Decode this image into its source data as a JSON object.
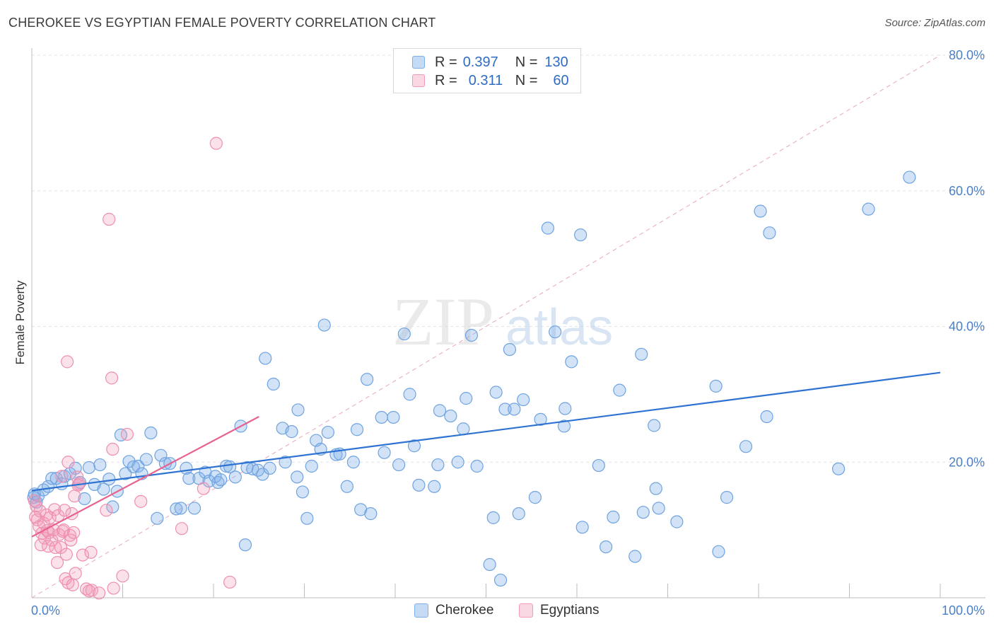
{
  "header": {
    "title": "CHEROKEE VS EGYPTIAN FEMALE POVERTY CORRELATION CHART",
    "source": "Source: ZipAtlas.com"
  },
  "watermark": {
    "zip": "ZIP",
    "atlas": "atlas"
  },
  "legend_top": {
    "rows": [
      {
        "r_label": "R =",
        "r_value": "0.397",
        "n_label": "N =",
        "n_value": "130",
        "color": "#7fb0e8"
      },
      {
        "r_label": "R =",
        "r_value": "0.311",
        "n_label": "N =",
        "n_value": "60",
        "color": "#f19ab8"
      }
    ]
  },
  "legend_bottom": [
    {
      "label": "Cherokee",
      "color": "#7fb0e8"
    },
    {
      "label": "Egyptians",
      "color": "#f19ab8"
    }
  ],
  "colors": {
    "cherokee_fill": "rgba(127,176,232,0.35)",
    "cherokee_stroke": "#6fa3e0",
    "egyptian_fill": "rgba(241,154,184,0.30)",
    "egyptian_stroke": "#ee8fb0",
    "cherokee_line": "#2e72d2",
    "egyptian_line": "#e8628f",
    "diagonal": "#e9a6bc",
    "grid": "#e3e3e3",
    "tick_text": "#4a7fc8"
  },
  "chart_data": {
    "type": "scatter",
    "title": "CHEROKEE VS EGYPTIAN FEMALE POVERTY CORRELATION CHART",
    "xlabel": "",
    "ylabel": "Female Poverty",
    "xlim": [
      0,
      100
    ],
    "ylim": [
      0,
      80
    ],
    "x_tick_labels": [
      "0.0%",
      "100.0%"
    ],
    "y_ticks": [
      20,
      40,
      60,
      80
    ],
    "y_tick_labels": [
      "20.0%",
      "40.0%",
      "60.0%",
      "80.0%"
    ],
    "grid": true,
    "legend_position": "top-center",
    "series": [
      {
        "name": "Cherokee",
        "r": 0.397,
        "n": 130,
        "trend": {
          "x": [
            0,
            100
          ],
          "y": [
            15.8,
            33.2
          ]
        },
        "points": [
          [
            0.2,
            14.8
          ],
          [
            0.3,
            15.3
          ],
          [
            0.5,
            14.1
          ],
          [
            0.7,
            15.0
          ],
          [
            1.3,
            15.9
          ],
          [
            1.8,
            16.4
          ],
          [
            2.2,
            17.6
          ],
          [
            2.7,
            17.6
          ],
          [
            3.3,
            16.8
          ],
          [
            3.6,
            17.9
          ],
          [
            4.2,
            18.3
          ],
          [
            4.8,
            19.1
          ],
          [
            5.3,
            17.0
          ],
          [
            5.8,
            14.6
          ],
          [
            6.3,
            19.2
          ],
          [
            6.9,
            16.7
          ],
          [
            7.5,
            19.6
          ],
          [
            7.9,
            16.0
          ],
          [
            8.5,
            17.5
          ],
          [
            8.9,
            13.4
          ],
          [
            9.4,
            15.7
          ],
          [
            9.8,
            24.0
          ],
          [
            10.3,
            18.3
          ],
          [
            10.7,
            20.1
          ],
          [
            11.2,
            19.3
          ],
          [
            11.7,
            19.4
          ],
          [
            12.1,
            18.3
          ],
          [
            12.6,
            20.4
          ],
          [
            13.1,
            24.3
          ],
          [
            13.8,
            11.7
          ],
          [
            14.2,
            21.0
          ],
          [
            14.7,
            19.8
          ],
          [
            15.2,
            19.8
          ],
          [
            15.9,
            13.1
          ],
          [
            16.4,
            13.2
          ],
          [
            17.0,
            19.1
          ],
          [
            17.3,
            17.6
          ],
          [
            17.9,
            13.2
          ],
          [
            18.4,
            17.6
          ],
          [
            19.1,
            18.5
          ],
          [
            19.5,
            17.2
          ],
          [
            20.2,
            17.9
          ],
          [
            20.5,
            17.0
          ],
          [
            20.8,
            17.4
          ],
          [
            21.4,
            19.4
          ],
          [
            21.8,
            19.3
          ],
          [
            22.4,
            17.8
          ],
          [
            23.0,
            25.3
          ],
          [
            23.5,
            7.8
          ],
          [
            23.7,
            19.2
          ],
          [
            24.3,
            19.0
          ],
          [
            24.9,
            18.8
          ],
          [
            25.4,
            18.2
          ],
          [
            25.7,
            35.3
          ],
          [
            26.2,
            19.1
          ],
          [
            26.6,
            31.5
          ],
          [
            27.6,
            25.0
          ],
          [
            27.9,
            20.0
          ],
          [
            28.6,
            24.5
          ],
          [
            29.2,
            17.8
          ],
          [
            29.3,
            27.7
          ],
          [
            29.8,
            15.6
          ],
          [
            30.3,
            11.7
          ],
          [
            30.8,
            19.4
          ],
          [
            31.3,
            23.2
          ],
          [
            31.8,
            21.9
          ],
          [
            32.2,
            40.2
          ],
          [
            32.6,
            24.4
          ],
          [
            33.5,
            21.1
          ],
          [
            33.9,
            21.2
          ],
          [
            34.7,
            16.4
          ],
          [
            35.4,
            20.0
          ],
          [
            35.8,
            24.8
          ],
          [
            36.2,
            13.0
          ],
          [
            36.9,
            32.2
          ],
          [
            37.3,
            12.4
          ],
          [
            38.5,
            26.6
          ],
          [
            38.8,
            21.4
          ],
          [
            39.8,
            26.6
          ],
          [
            40.4,
            19.6
          ],
          [
            41.0,
            38.9
          ],
          [
            41.6,
            30.0
          ],
          [
            42.1,
            22.4
          ],
          [
            42.6,
            16.6
          ],
          [
            44.3,
            16.4
          ],
          [
            44.7,
            19.6
          ],
          [
            44.9,
            27.6
          ],
          [
            46.1,
            26.8
          ],
          [
            46.9,
            20.0
          ],
          [
            47.5,
            24.9
          ],
          [
            47.8,
            29.4
          ],
          [
            48.4,
            38.7
          ],
          [
            49.0,
            19.4
          ],
          [
            50.4,
            4.9
          ],
          [
            50.8,
            11.8
          ],
          [
            51.1,
            30.3
          ],
          [
            51.6,
            2.6
          ],
          [
            52.1,
            27.8
          ],
          [
            52.6,
            36.6
          ],
          [
            53.1,
            27.8
          ],
          [
            53.6,
            12.4
          ],
          [
            54.1,
            29.2
          ],
          [
            55.4,
            14.8
          ],
          [
            56.0,
            26.3
          ],
          [
            56.8,
            54.5
          ],
          [
            57.6,
            39.2
          ],
          [
            58.6,
            25.3
          ],
          [
            58.7,
            27.9
          ],
          [
            59.4,
            34.8
          ],
          [
            60.4,
            53.5
          ],
          [
            60.6,
            10.4
          ],
          [
            62.4,
            19.5
          ],
          [
            63.2,
            7.5
          ],
          [
            64.0,
            11.9
          ],
          [
            64.7,
            30.6
          ],
          [
            66.4,
            6.1
          ],
          [
            67.1,
            35.9
          ],
          [
            67.3,
            12.6
          ],
          [
            68.5,
            25.4
          ],
          [
            68.7,
            16.1
          ],
          [
            69.0,
            13.2
          ],
          [
            71.0,
            11.2
          ],
          [
            75.3,
            31.2
          ],
          [
            75.6,
            6.8
          ],
          [
            76.5,
            14.8
          ],
          [
            78.6,
            22.3
          ],
          [
            80.2,
            57.0
          ],
          [
            80.9,
            26.7
          ],
          [
            81.2,
            53.8
          ],
          [
            88.8,
            19.0
          ],
          [
            92.1,
            57.3
          ],
          [
            96.6,
            62.0
          ]
        ]
      },
      {
        "name": "Egyptians",
        "r": 0.311,
        "n": 60,
        "trend": {
          "x": [
            0,
            25
          ],
          "y": [
            9.0,
            26.7
          ]
        },
        "points": [
          [
            0.3,
            14.3
          ],
          [
            0.5,
            13.5
          ],
          [
            0.6,
            11.5
          ],
          [
            0.8,
            10.5
          ],
          [
            0.9,
            12.8
          ],
          [
            1.1,
            9.5
          ],
          [
            1.3,
            11.0
          ],
          [
            1.4,
            8.8
          ],
          [
            1.6,
            12.2
          ],
          [
            1.7,
            9.9
          ],
          [
            1.8,
            7.6
          ],
          [
            1.9,
            9.6
          ],
          [
            2.0,
            11.8
          ],
          [
            2.2,
            8.5
          ],
          [
            2.4,
            10.0
          ],
          [
            2.5,
            13.0
          ],
          [
            2.6,
            7.4
          ],
          [
            2.8,
            5.2
          ],
          [
            2.9,
            12.1
          ],
          [
            3.0,
            9.3
          ],
          [
            3.2,
            7.4
          ],
          [
            3.3,
            17.9
          ],
          [
            3.4,
            9.8
          ],
          [
            3.5,
            10.0
          ],
          [
            3.6,
            12.9
          ],
          [
            3.7,
            2.8
          ],
          [
            3.8,
            6.4
          ],
          [
            3.9,
            34.8
          ],
          [
            4.0,
            2.2
          ],
          [
            4.0,
            20.0
          ],
          [
            4.2,
            9.2
          ],
          [
            4.3,
            8.5
          ],
          [
            4.4,
            12.4
          ],
          [
            4.5,
            1.9
          ],
          [
            4.6,
            9.6
          ],
          [
            4.7,
            15.0
          ],
          [
            4.8,
            3.6
          ],
          [
            5.0,
            17.8
          ],
          [
            5.1,
            16.6
          ],
          [
            5.2,
            16.8
          ],
          [
            5.6,
            6.3
          ],
          [
            6.0,
            1.3
          ],
          [
            6.3,
            1.0
          ],
          [
            6.5,
            6.7
          ],
          [
            6.6,
            1.1
          ],
          [
            7.4,
            0.7
          ],
          [
            8.2,
            12.9
          ],
          [
            8.5,
            55.8
          ],
          [
            8.8,
            32.4
          ],
          [
            8.9,
            21.9
          ],
          [
            9.0,
            1.4
          ],
          [
            10.0,
            3.2
          ],
          [
            10.5,
            24.1
          ],
          [
            12.0,
            14.2
          ],
          [
            16.5,
            10.2
          ],
          [
            18.9,
            16.1
          ],
          [
            20.3,
            67.0
          ],
          [
            21.8,
            2.3
          ],
          [
            1.0,
            7.8
          ],
          [
            0.4,
            11.9
          ]
        ]
      }
    ]
  }
}
